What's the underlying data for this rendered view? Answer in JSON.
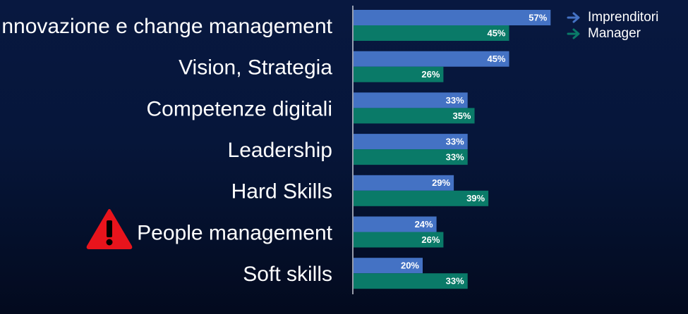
{
  "chart_data": {
    "type": "bar",
    "orientation": "horizontal",
    "categories": [
      "Innovazione e change management",
      "Vision, Strategia",
      "Competenze digitali",
      "Leadership",
      "Hard Skills",
      "People management",
      "Soft skills"
    ],
    "series": [
      {
        "name": "Imprenditori",
        "values": [
          57,
          45,
          33,
          33,
          29,
          24,
          20
        ],
        "labels": [
          "57%",
          "45%",
          "33%",
          "33%",
          "29%",
          "24%",
          "20%"
        ],
        "color": "#4472C4"
      },
      {
        "name": "Manager",
        "values": [
          45,
          26,
          35,
          33,
          39,
          26,
          33
        ],
        "labels": [
          "45%",
          "26%",
          "35%",
          "33%",
          "39%",
          "26%",
          "33%"
        ],
        "color": "#0A7A68"
      }
    ],
    "title": "",
    "xlabel": "",
    "ylabel": "",
    "xlim": [
      0,
      100
    ],
    "grid": false,
    "legend_position": "top-right",
    "highlighted_category": "People management"
  },
  "legend": {
    "items": [
      {
        "label": "Imprenditori",
        "arrow_color": "#4472C4"
      },
      {
        "label": "Manager",
        "arrow_color": "#0A7A68"
      }
    ]
  },
  "annotations": {
    "warning_icon": "warning-triangle-icon",
    "warning_color": "#E8141C"
  }
}
